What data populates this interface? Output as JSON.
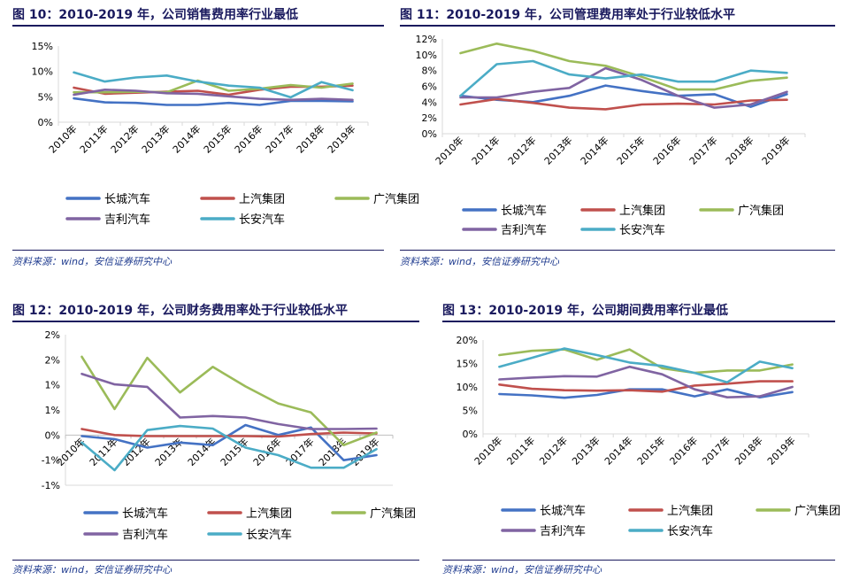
{
  "colors": {
    "长城汽车": "#4472c4",
    "上汽集团": "#c0504d",
    "广汽集团": "#9bbb59",
    "吉利汽车": "#8064a2",
    "长安汽车": "#4bacc6"
  },
  "figures": [
    {
      "title": "图 10：2010-2019 年，公司销售费用率行业最低",
      "source": "资料来源：wind，安信证券研究中心"
    },
    {
      "title": "图 11：2010-2019 年，公司管理费用率处于行业较低水平",
      "source": "资料来源：wind，安信证券研究中心"
    },
    {
      "title": "图 12：2010-2019 年，公司财务费用率处于行业较低水平",
      "source": "资料来源：wind，安信证券研究中心"
    },
    {
      "title": "图 13：2010-2019 年，公司期间费用率行业最低",
      "source": "资料来源：wind，安信证券研究中心"
    }
  ],
  "chart_data": [
    {
      "type": "line",
      "title": "图 10：2010-2019 年，公司销售费用率行业最低",
      "categories": [
        "2010年",
        "2011年",
        "2012年",
        "2013年",
        "2014年",
        "2015年",
        "2016年",
        "2017年",
        "2018年",
        "2019年"
      ],
      "ylim": [
        0,
        15
      ],
      "yticks": [
        0,
        5,
        10,
        15
      ],
      "ytick_labels": [
        "0%",
        "5%",
        "10%",
        "15%"
      ],
      "legend_placement": "bottom",
      "series": [
        {
          "name": "长城汽车",
          "values": [
            4.7,
            3.9,
            3.8,
            3.4,
            3.4,
            3.8,
            3.4,
            4.2,
            4.2,
            4.1
          ]
        },
        {
          "name": "上汽集团",
          "values": [
            6.8,
            5.6,
            5.8,
            6.0,
            6.2,
            5.4,
            6.4,
            7.0,
            7.0,
            7.2
          ]
        },
        {
          "name": "广汽集团",
          "values": [
            5.9,
            5.9,
            6.0,
            5.9,
            8.2,
            6.2,
            6.6,
            7.3,
            6.8,
            7.6
          ]
        },
        {
          "name": "吉利汽车",
          "values": [
            5.4,
            6.4,
            6.2,
            5.7,
            5.6,
            5.1,
            4.6,
            4.4,
            4.6,
            4.4
          ]
        },
        {
          "name": "长安汽车",
          "values": [
            9.8,
            8.0,
            8.8,
            9.2,
            8.0,
            7.2,
            6.8,
            4.9,
            7.9,
            6.3
          ]
        }
      ]
    },
    {
      "type": "line",
      "title": "图 11：2010-2019 年，公司管理费用率处于行业较低水平",
      "categories": [
        "2010年",
        "2011年",
        "2012年",
        "2013年",
        "2014年",
        "2015年",
        "2016年",
        "2017年",
        "2018年",
        "2019年"
      ],
      "ylim": [
        0,
        12
      ],
      "yticks": [
        0,
        2,
        4,
        6,
        8,
        10,
        12
      ],
      "ytick_labels": [
        "0%",
        "2%",
        "4%",
        "6%",
        "8%",
        "10%",
        "12%"
      ],
      "legend_placement": "bottom",
      "series": [
        {
          "name": "长城汽车",
          "values": [
            4.8,
            4.3,
            4.0,
            4.8,
            6.1,
            5.4,
            4.8,
            5.0,
            3.4,
            5.0
          ]
        },
        {
          "name": "上汽集团",
          "values": [
            3.7,
            4.4,
            3.9,
            3.3,
            3.1,
            3.7,
            3.8,
            3.7,
            4.2,
            4.3
          ]
        },
        {
          "name": "广汽集团",
          "values": [
            10.2,
            11.4,
            10.5,
            9.2,
            8.6,
            7.2,
            5.6,
            5.6,
            6.7,
            7.1
          ]
        },
        {
          "name": "吉利汽车",
          "values": [
            4.6,
            4.6,
            5.3,
            5.8,
            8.3,
            6.8,
            4.8,
            3.3,
            3.7,
            5.3
          ]
        },
        {
          "name": "长安汽车",
          "values": [
            4.8,
            8.8,
            9.2,
            7.5,
            7.0,
            7.5,
            6.6,
            6.6,
            8.0,
            7.7
          ]
        }
      ]
    },
    {
      "type": "line",
      "title": "图 12：2010-2019 年，公司财务费用率处于行业较低水平",
      "categories": [
        "2010年",
        "2011年",
        "2012年",
        "2013年",
        "2014年",
        "2015年",
        "2016年",
        "2017年",
        "2018年",
        "2019年"
      ],
      "ylim": [
        -1.0,
        2.0
      ],
      "yticks": [
        -1.0,
        -0.5,
        0,
        0.5,
        1.0,
        1.5,
        2.0
      ],
      "ytick_labels": [
        "-1%",
        "-1%",
        "0%",
        "1%",
        "1%",
        "2%",
        "2%"
      ],
      "legend_placement": "bottom",
      "series": [
        {
          "name": "长城汽车",
          "values": [
            -0.02,
            -0.08,
            -0.25,
            -0.15,
            -0.2,
            0.2,
            0.0,
            0.15,
            -0.5,
            -0.4
          ]
        },
        {
          "name": "上汽集团",
          "values": [
            0.12,
            0.0,
            -0.02,
            -0.02,
            -0.02,
            -0.02,
            -0.03,
            0.02,
            0.05,
            0.03
          ]
        },
        {
          "name": "广汽集团",
          "values": [
            1.56,
            0.52,
            1.54,
            0.85,
            1.36,
            0.97,
            0.63,
            0.45,
            -0.2,
            0.05
          ]
        },
        {
          "name": "吉利汽车",
          "values": [
            1.22,
            1.01,
            0.96,
            0.35,
            0.38,
            0.35,
            0.22,
            0.12,
            0.12,
            0.13
          ]
        },
        {
          "name": "长安汽车",
          "values": [
            -0.15,
            -0.7,
            0.1,
            0.18,
            0.13,
            -0.25,
            -0.4,
            -0.65,
            -0.65,
            -0.28
          ]
        }
      ]
    },
    {
      "type": "line",
      "title": "图 13：2010-2019 年，公司期间费用率行业最低",
      "categories": [
        "2010年",
        "2011年",
        "2012年",
        "2013年",
        "2014年",
        "2015年",
        "2016年",
        "2017年",
        "2018年",
        "2019年"
      ],
      "ylim": [
        0,
        20
      ],
      "yticks": [
        0,
        5,
        10,
        15,
        20
      ],
      "ytick_labels": [
        "0%",
        "5%",
        "10%",
        "15%",
        "20%"
      ],
      "legend_placement": "bottom",
      "series": [
        {
          "name": "长城汽车",
          "values": [
            8.5,
            8.2,
            7.7,
            8.3,
            9.5,
            9.5,
            8.0,
            9.5,
            7.8,
            8.9
          ]
        },
        {
          "name": "上汽集团",
          "values": [
            10.5,
            9.6,
            9.3,
            9.2,
            9.3,
            9.0,
            10.3,
            10.7,
            11.2,
            11.2
          ]
        },
        {
          "name": "广汽集团",
          "values": [
            16.8,
            17.7,
            18.0,
            15.8,
            18.0,
            14.0,
            13.0,
            13.5,
            13.5,
            14.8
          ]
        },
        {
          "name": "吉利汽车",
          "values": [
            11.6,
            12.0,
            12.3,
            12.2,
            14.3,
            12.7,
            9.5,
            7.8,
            8.0,
            10.0
          ]
        },
        {
          "name": "长安汽车",
          "values": [
            14.3,
            16.2,
            18.2,
            16.8,
            15.2,
            14.5,
            13.0,
            11.0,
            15.4,
            14.0
          ]
        }
      ]
    }
  ]
}
